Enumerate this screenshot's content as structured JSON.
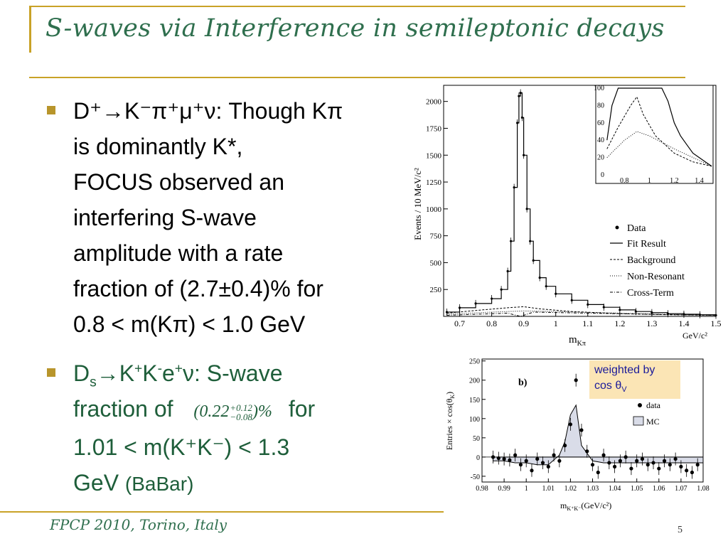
{
  "slide": {
    "title": "S-waves via Interference in semileptonic decays",
    "footer": "FPCP 2010, Torino, Italy",
    "page_number": "5"
  },
  "bullets": [
    {
      "lines": [
        "D⁺→K⁻π⁺μ⁺ν: Though Kπ",
        "is dominantly K*,",
        "FOCUS observed an",
        "interfering S-wave",
        "amplitude with a rate",
        "fraction of (2.7±0.4)% for",
        "0.8 < m(Kπ) < 1.0 GeV"
      ]
    },
    {
      "line1_text": "D",
      "line1_sub": "s",
      "line1_rest": "K",
      "line1_tail": ": S-wave",
      "line2_text": "fraction of",
      "fraction_value": "(0.22",
      "fraction_sup": "+0.12",
      "fraction_sub": "−0.08",
      "fraction_unit": ")%",
      "line2_tail": "for",
      "line3": "1.01 < m(K⁺K⁻) < 1.3",
      "line4_a": "GeV",
      "line4_b": "(BaBar)"
    }
  ],
  "note": {
    "line1": "weighted by",
    "line2": "cos θ",
    "line2_sub": "V"
  },
  "chart_data": [
    {
      "type": "line",
      "xlabel": "m",
      "xlabel_sub": "Kπ",
      "xunit": "GeV/c²",
      "ylabel": "Events / 10 MeV/c²",
      "xlim": [
        0.65,
        1.5
      ],
      "ylim": [
        0,
        2150
      ],
      "xticks": [
        0.7,
        0.8,
        0.9,
        1,
        1.1,
        1.2,
        1.3,
        1.4,
        1.5
      ],
      "yticks": [
        250,
        500,
        750,
        1000,
        1250,
        1500,
        1750,
        2000
      ],
      "series": [
        {
          "name": "Data",
          "x": [
            0.66,
            0.7,
            0.75,
            0.8,
            0.83,
            0.85,
            0.86,
            0.87,
            0.88,
            0.885,
            0.89,
            0.895,
            0.9,
            0.91,
            0.92,
            0.93,
            0.95,
            0.97,
            1.0,
            1.05,
            1.1,
            1.15,
            1.2,
            1.25,
            1.3,
            1.35,
            1.4,
            1.45,
            1.5
          ],
          "y": [
            40,
            80,
            120,
            165,
            250,
            420,
            700,
            1200,
            1800,
            2050,
            2080,
            1850,
            1500,
            1000,
            700,
            520,
            360,
            280,
            210,
            150,
            110,
            85,
            60,
            45,
            35,
            25,
            20,
            15,
            10
          ]
        },
        {
          "name": "Background",
          "x": [
            0.66,
            0.75,
            0.85,
            0.9,
            0.95,
            1.05,
            1.2,
            1.35,
            1.5
          ],
          "y": [
            30,
            55,
            80,
            90,
            70,
            45,
            25,
            15,
            10
          ]
        },
        {
          "name": "Non-Resonant",
          "x": [
            0.66,
            0.8,
            0.9,
            1.0,
            1.2,
            1.5
          ],
          "y": [
            20,
            40,
            50,
            45,
            30,
            10
          ]
        },
        {
          "name": "Cross-Term",
          "x": [
            0.66,
            0.85,
            0.89,
            0.93,
            1.1,
            1.5
          ],
          "y": [
            10,
            30,
            -10,
            40,
            30,
            10
          ]
        }
      ],
      "legend": [
        "Data",
        "Fit Result",
        "Background",
        "Non-Resonant",
        "Cross-Term"
      ],
      "inset": {
        "xlim": [
          0.65,
          1.5
        ],
        "ylim": [
          0,
          100
        ],
        "xticks": [
          0.8,
          1,
          1.2,
          1.4
        ],
        "yticks": [
          0,
          20,
          40,
          60,
          80,
          100
        ]
      }
    },
    {
      "type": "scatter",
      "panel_label": "b)",
      "xlabel": "m",
      "xlabel_sub": "K⁺K⁻",
      "xunit": "(GeV/c²)",
      "ylabel": "Entries × cos(θ",
      "ylabel_sub": "K",
      "xlim": [
        0.98,
        1.08
      ],
      "ylim": [
        -65,
        255
      ],
      "xticks": [
        "0.98",
        "0.99",
        "1",
        "1.01",
        "1.02",
        "1.03",
        "1.04",
        "1.05",
        "1.06",
        "1.07",
        "1.08"
      ],
      "yticks": [
        -50,
        0,
        50,
        100,
        150,
        200,
        250
      ],
      "series": [
        {
          "name": "data",
          "x": [
            0.985,
            0.9875,
            0.99,
            0.9925,
            0.995,
            0.9975,
            1.0,
            1.0025,
            1.005,
            1.0075,
            1.01,
            1.0125,
            1.015,
            1.0175,
            1.02,
            1.0225,
            1.025,
            1.0275,
            1.03,
            1.0325,
            1.035,
            1.0375,
            1.04,
            1.0425,
            1.045,
            1.0475,
            1.05,
            1.0525,
            1.055,
            1.0575,
            1.06,
            1.0625,
            1.065,
            1.0675,
            1.07,
            1.0725,
            1.075,
            1.0775
          ],
          "y": [
            0,
            -3,
            -5,
            -8,
            5,
            -20,
            -10,
            -35,
            -5,
            -15,
            -25,
            5,
            -10,
            30,
            85,
            200,
            70,
            15,
            -20,
            -40,
            5,
            -15,
            -25,
            -10,
            0,
            -30,
            -10,
            -5,
            -20,
            -15,
            -30,
            -10,
            -20,
            -5,
            -25,
            -35,
            -40,
            -20
          ]
        },
        {
          "name": "MC",
          "x": [
            0.985,
            0.99,
            0.995,
            1.0,
            1.005,
            1.01,
            1.015,
            1.0175,
            1.02,
            1.0225,
            1.025,
            1.03,
            1.035,
            1.04,
            1.045,
            1.05,
            1.055,
            1.06,
            1.065,
            1.07,
            1.075,
            1.08
          ],
          "y": [
            -10,
            -10,
            -15,
            -15,
            -20,
            -20,
            5,
            40,
            110,
            135,
            30,
            -10,
            -15,
            -15,
            -15,
            -15,
            -15,
            -15,
            -15,
            -15,
            -15,
            -15
          ]
        }
      ],
      "legend": [
        "data",
        "MC"
      ]
    }
  ]
}
